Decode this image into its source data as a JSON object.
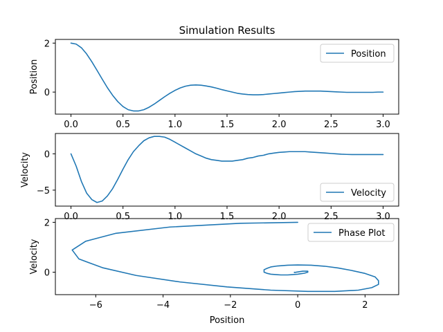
{
  "figure": {
    "title": "Simulation Results",
    "line_color": "#1f77b4"
  },
  "chart_data": [
    {
      "type": "line",
      "xlabel": "",
      "ylabel": "Position",
      "xlim": [
        -0.15,
        3.15
      ],
      "ylim": [
        -0.9,
        2.15
      ],
      "xticks": [
        0.0,
        0.5,
        1.0,
        1.5,
        2.0,
        2.5,
        3.0
      ],
      "xtick_labels": [
        "0.0",
        "0.5",
        "1.0",
        "1.5",
        "2.0",
        "2.5",
        "3.0"
      ],
      "yticks": [
        0,
        2
      ],
      "ytick_labels": [
        "0",
        "2"
      ],
      "legend": "upper right",
      "series": [
        {
          "name": "Position",
          "x": [
            0.0,
            0.05,
            0.1,
            0.15,
            0.2,
            0.25,
            0.3,
            0.35,
            0.4,
            0.45,
            0.5,
            0.55,
            0.6,
            0.65,
            0.7,
            0.75,
            0.8,
            0.85,
            0.9,
            0.95,
            1.0,
            1.05,
            1.1,
            1.15,
            1.2,
            1.25,
            1.3,
            1.35,
            1.4,
            1.45,
            1.5,
            1.55,
            1.6,
            1.65,
            1.7,
            1.75,
            1.8,
            1.85,
            1.9,
            1.95,
            2.0,
            2.05,
            2.1,
            2.15,
            2.2,
            2.25,
            2.3,
            2.35,
            2.4,
            2.45,
            2.5,
            2.55,
            2.6,
            2.65,
            2.7,
            2.75,
            2.8,
            2.85,
            2.9,
            2.95,
            3.0
          ],
          "y": [
            2.0,
            1.96,
            1.81,
            1.56,
            1.24,
            0.89,
            0.53,
            0.18,
            -0.13,
            -0.39,
            -0.59,
            -0.72,
            -0.77,
            -0.77,
            -0.72,
            -0.62,
            -0.49,
            -0.34,
            -0.19,
            -0.05,
            0.07,
            0.17,
            0.24,
            0.28,
            0.29,
            0.28,
            0.25,
            0.21,
            0.16,
            0.1,
            0.05,
            0.0,
            -0.05,
            -0.08,
            -0.1,
            -0.11,
            -0.11,
            -0.1,
            -0.08,
            -0.06,
            -0.04,
            -0.02,
            0.0,
            0.02,
            0.03,
            0.04,
            0.04,
            0.04,
            0.04,
            0.03,
            0.02,
            0.01,
            0.0,
            -0.01,
            -0.01,
            -0.01,
            -0.01,
            -0.01,
            -0.01,
            0.0,
            0.0
          ]
        }
      ]
    },
    {
      "type": "line",
      "xlabel": "",
      "ylabel": "Velocity",
      "xlim": [
        -0.15,
        3.15
      ],
      "ylim": [
        -7.2,
        2.8
      ],
      "xticks": [
        0.0,
        0.5,
        1.0,
        1.5,
        2.0,
        2.5,
        3.0
      ],
      "xtick_labels": [
        "0.0",
        "0.5",
        "1.0",
        "1.5",
        "2.0",
        "2.5",
        "3.0"
      ],
      "yticks": [
        -5,
        0
      ],
      "ytick_labels": [
        "−5",
        "0"
      ],
      "legend": "lower right",
      "series": [
        {
          "name": "Velocity",
          "x": [
            0.0,
            0.05,
            0.1,
            0.15,
            0.2,
            0.25,
            0.3,
            0.35,
            0.4,
            0.45,
            0.5,
            0.55,
            0.6,
            0.65,
            0.7,
            0.75,
            0.8,
            0.85,
            0.9,
            0.95,
            1.0,
            1.05,
            1.1,
            1.15,
            1.2,
            1.25,
            1.3,
            1.35,
            1.4,
            1.45,
            1.5,
            1.55,
            1.6,
            1.65,
            1.7,
            1.75,
            1.8,
            1.85,
            1.9,
            1.95,
            2.0,
            2.05,
            2.1,
            2.15,
            2.2,
            2.25,
            2.3,
            2.35,
            2.4,
            2.45,
            2.5,
            2.55,
            2.6,
            2.65,
            2.7,
            2.75,
            2.8,
            2.85,
            2.9,
            2.95,
            3.0
          ],
          "y": [
            0.0,
            -1.7,
            -3.8,
            -5.4,
            -6.3,
            -6.7,
            -6.5,
            -5.8,
            -4.8,
            -3.5,
            -2.1,
            -0.8,
            0.3,
            1.1,
            1.8,
            2.2,
            2.4,
            2.4,
            2.3,
            2.0,
            1.6,
            1.2,
            0.8,
            0.4,
            0.0,
            -0.3,
            -0.6,
            -0.8,
            -0.9,
            -1.0,
            -1.0,
            -1.0,
            -0.9,
            -0.8,
            -0.6,
            -0.5,
            -0.3,
            -0.2,
            0.0,
            0.1,
            0.2,
            0.25,
            0.3,
            0.3,
            0.3,
            0.3,
            0.25,
            0.2,
            0.15,
            0.1,
            0.05,
            0.0,
            -0.05,
            -0.08,
            -0.1,
            -0.1,
            -0.1,
            -0.1,
            -0.1,
            -0.1,
            -0.1
          ]
        }
      ]
    },
    {
      "type": "line",
      "xlabel": "Position",
      "ylabel": "Velocity",
      "xlim": [
        -7.2,
        3.0
      ],
      "ylim": [
        -0.9,
        2.15
      ],
      "xticks": [
        -6,
        -4,
        -2,
        0,
        2
      ],
      "xtick_labels": [
        "−6",
        "−4",
        "−2",
        "0",
        "2"
      ],
      "yticks": [
        0,
        2
      ],
      "ytick_labels": [
        "0",
        "2"
      ],
      "legend": "upper right",
      "series": [
        {
          "name": "Phase Plot",
          "x": [
            0.0,
            -1.7,
            -3.8,
            -5.4,
            -6.3,
            -6.7,
            -6.5,
            -5.8,
            -4.8,
            -3.5,
            -2.1,
            -0.8,
            0.3,
            1.1,
            1.8,
            2.2,
            2.4,
            2.4,
            2.3,
            2.0,
            1.6,
            1.2,
            0.8,
            0.4,
            0.0,
            -0.3,
            -0.6,
            -0.8,
            -0.9,
            -1.0,
            -1.0,
            -1.0,
            -0.9,
            -0.8,
            -0.6,
            -0.5,
            -0.3,
            -0.2,
            0.0,
            0.1,
            0.2,
            0.25,
            0.3,
            0.3,
            0.3,
            0.3,
            0.25,
            0.2,
            0.15,
            0.1,
            0.05,
            0.0,
            -0.05,
            -0.08,
            -0.1,
            -0.1,
            -0.1,
            -0.1,
            -0.1,
            -0.1,
            -0.1
          ],
          "y": [
            2.0,
            1.96,
            1.81,
            1.56,
            1.24,
            0.89,
            0.53,
            0.18,
            -0.13,
            -0.39,
            -0.59,
            -0.72,
            -0.77,
            -0.77,
            -0.72,
            -0.62,
            -0.49,
            -0.34,
            -0.19,
            -0.05,
            0.07,
            0.17,
            0.24,
            0.28,
            0.29,
            0.28,
            0.25,
            0.21,
            0.16,
            0.1,
            0.05,
            0.0,
            -0.05,
            -0.08,
            -0.1,
            -0.11,
            -0.11,
            -0.1,
            -0.08,
            -0.06,
            -0.04,
            -0.02,
            0.0,
            0.02,
            0.03,
            0.04,
            0.04,
            0.04,
            0.04,
            0.03,
            0.02,
            0.01,
            0.0,
            -0.01,
            -0.01,
            -0.01,
            -0.01,
            -0.01,
            -0.01,
            0.0,
            0.0
          ]
        }
      ]
    }
  ]
}
